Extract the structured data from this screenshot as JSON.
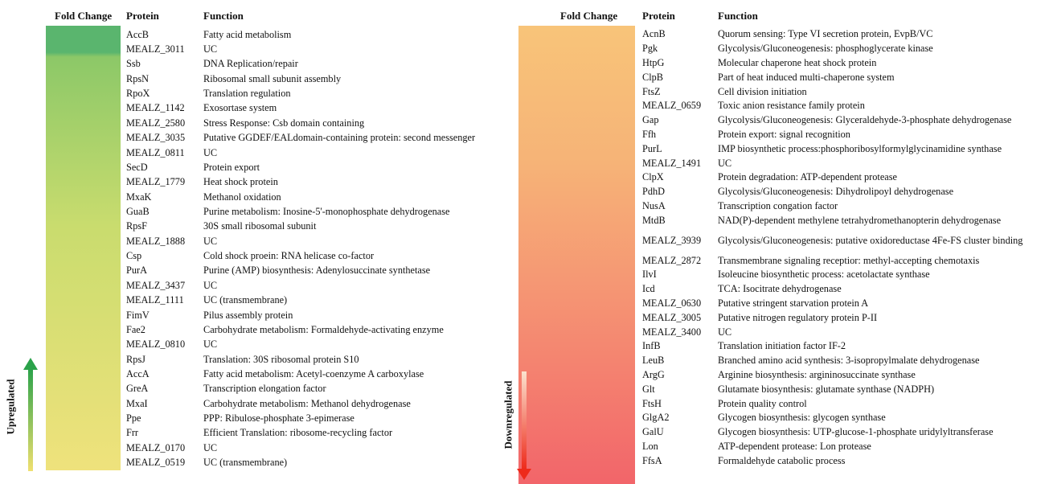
{
  "left": {
    "headers": {
      "fold_change": "Fold Change",
      "protein": "Protein",
      "function": "Function"
    },
    "label": "Upregulated",
    "rows": [
      [
        "AccB",
        "Fatty acid metabolism"
      ],
      [
        "MEALZ_3011",
        "UC"
      ],
      [
        "Ssb",
        "DNA Replication/repair"
      ],
      [
        "RpsN",
        "Ribosomal small subunit assembly"
      ],
      [
        "RpoX",
        "Translation regulation"
      ],
      [
        "MEALZ_1142",
        "Exosortase system"
      ],
      [
        "MEALZ_2580",
        "Stress Response: Csb domain containing"
      ],
      [
        "MEALZ_3035",
        "Putative GGDEF/EALdomain-containing protein: second messenger"
      ],
      [
        "MEALZ_0811",
        "UC"
      ],
      [
        "SecD",
        "Protein export"
      ],
      [
        "MEALZ_1779",
        "Heat shock protein"
      ],
      [
        "MxaK",
        "Methanol oxidation"
      ],
      [
        "GuaB",
        "Purine metabolism: Inosine-5'-monophosphate dehydrogenase"
      ],
      [
        "RpsF",
        "30S small ribosomal subunit"
      ],
      [
        "MEALZ_1888",
        "UC"
      ],
      [
        "Csp",
        "Cold shock proein: RNA helicase co-factor"
      ],
      [
        "PurA",
        "Purine (AMP)  biosynthesis: Adenylosuccinate synthetase"
      ],
      [
        "MEALZ_3437",
        "UC"
      ],
      [
        "MEALZ_1111",
        "UC (transmembrane)"
      ],
      [
        "FimV",
        "Pilus assembly protein"
      ],
      [
        "Fae2",
        "Carbohydrate metabolism: Formaldehyde-activating enzyme"
      ],
      [
        "MEALZ_0810",
        "UC"
      ],
      [
        "RpsJ",
        "Translation: 30S ribosomal protein S10"
      ],
      [
        "AccA",
        "Fatty acid metabolism: Acetyl-coenzyme A carboxylase"
      ],
      [
        "GreA",
        "Transcription elongation factor"
      ],
      [
        "MxaI",
        "Carbohydrate metabolism: Methanol dehydrogenase"
      ],
      [
        "Ppe",
        "PPP: Ribulose-phosphate 3-epimerase"
      ],
      [
        "Frr",
        "Efficient Translation: ribosome-recycling factor"
      ],
      [
        "MEALZ_0170",
        "UC"
      ],
      [
        "MEALZ_0519",
        "UC (transmembrane)"
      ]
    ]
  },
  "right": {
    "headers": {
      "fold_change": "Fold Change",
      "protein": "Protein",
      "function": "Function"
    },
    "label": "Downregulated",
    "rows": [
      [
        "AcnB",
        "Quorum sensing: Type VI secretion protein, EvpB/VC"
      ],
      [
        "Pgk",
        "Glycolysis/Gluconeogenesis: phosphoglycerate kinase"
      ],
      [
        "HtpG",
        "Molecular chaperone heat shock protein"
      ],
      [
        "ClpB",
        "Part of heat induced multi-chaperone system"
      ],
      [
        "FtsZ",
        "Cell division initiation"
      ],
      [
        "MEALZ_0659",
        "Toxic anion resistance family protein"
      ],
      [
        "Gap",
        "Glycolysis/Gluconeogenesis: Glyceraldehyde-3-phosphate dehydrogenase"
      ],
      [
        "Ffh",
        "Protein export: signal recognition"
      ],
      [
        "PurL",
        "IMP biosynthetic process:phosphoribosylformylglycinamidine synthase"
      ],
      [
        "MEALZ_1491",
        "UC"
      ],
      [
        "ClpX",
        "Protein degradation: ATP-dependent protease"
      ],
      [
        "PdhD",
        "Glycolysis/Gluconeogenesis: Dihydrolipoyl dehydrogenase"
      ],
      [
        "NusA",
        "Transcription congation factor"
      ],
      [
        "MtdB",
        "NAD(P)-dependent methylene tetrahydromethanopterin dehydrogenase"
      ],
      [
        "MEALZ_3939",
        "Glycolysis/Gluconeogenesis: putative oxidoreductase 4Fe-FS cluster binding"
      ],
      [
        "MEALZ_2872",
        "Transmembrane signaling receptior: methyl-accepting chemotaxis"
      ],
      [
        "IlvI",
        "Isoleucine biosynthetic process: acetolactate synthase"
      ],
      [
        "Icd",
        "TCA: Isocitrate dehydrogenase"
      ],
      [
        "MEALZ_0630",
        "Putative stringent starvation protein A"
      ],
      [
        "MEALZ_3005",
        "Putative nitrogen regulatory protein P-II"
      ],
      [
        "MEALZ_3400",
        "UC"
      ],
      [
        "InfB",
        "Translation initiation factor IF-2"
      ],
      [
        "LeuB",
        "Branched amino acid synthesis: 3-isopropylmalate dehydrogenase"
      ],
      [
        "ArgG",
        "Arginine biosynthesis: argininosuccinate synthase"
      ],
      [
        "Glt",
        "Glutamate biosynthesis: glutamate synthase (NADPH)"
      ],
      [
        "FtsH",
        "Protein quality control"
      ],
      [
        "GlgA2",
        "Glycogen biosynthesis: glycogen synthase"
      ],
      [
        "GalU",
        "Glycogen biosynthesis: UTP-glucose-1-phosphate uridylyltransferase"
      ],
      [
        "Lon",
        "ATP-dependent protease: Lon protease"
      ],
      [
        "FfsA",
        "Formaldehyde catabolic process"
      ]
    ]
  }
}
